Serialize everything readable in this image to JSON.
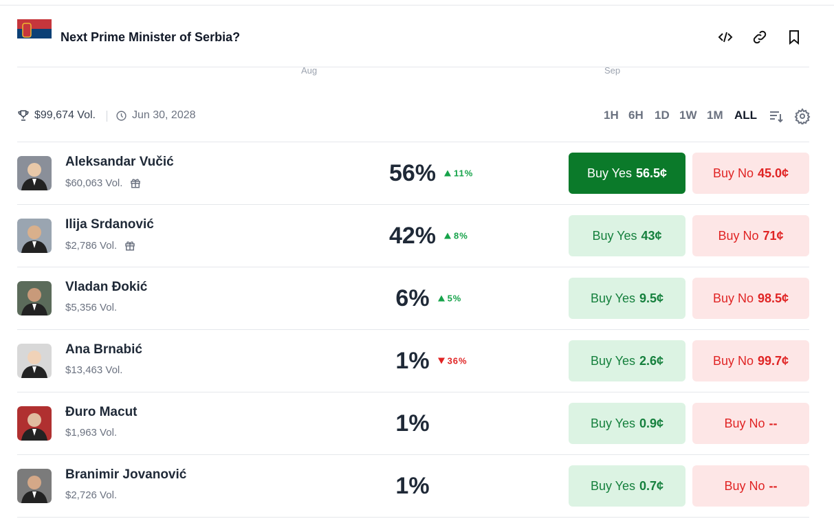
{
  "header": {
    "title": "Next Prime Minister of Serbia?"
  },
  "chart_axis": {
    "labels": [
      "Aug",
      "Sep"
    ]
  },
  "stats": {
    "volume": "$99,674 Vol.",
    "end_date": "Jun 30, 2028"
  },
  "time_ranges": {
    "options": [
      "1H",
      "6H",
      "1D",
      "1W",
      "1M",
      "ALL"
    ],
    "selected": 5
  },
  "outcomes": [
    {
      "name": "Aleksandar Vučić",
      "volume": "$60,063 Vol.",
      "gift": true,
      "chance": "56%",
      "change": "11%",
      "direction": "up",
      "yes_label": "Buy Yes",
      "yes_price": "56.5¢",
      "no_label": "Buy No",
      "no_price": "45.0¢",
      "yes_active": true
    },
    {
      "name": "Ilija Srdanović",
      "volume": "$2,786 Vol.",
      "gift": true,
      "chance": "42%",
      "change": "8%",
      "direction": "up",
      "yes_label": "Buy Yes",
      "yes_price": "43¢",
      "no_label": "Buy No",
      "no_price": "71¢"
    },
    {
      "name": "Vladan Đokić",
      "volume": "$5,356 Vol.",
      "chance": "6%",
      "change": "5%",
      "direction": "up",
      "yes_label": "Buy Yes",
      "yes_price": "9.5¢",
      "no_label": "Buy No",
      "no_price": "98.5¢"
    },
    {
      "name": "Ana Brnabić",
      "volume": "$13,463 Vol.",
      "chance": "1%",
      "change": "36%",
      "direction": "down",
      "yes_label": "Buy Yes",
      "yes_price": "2.6¢",
      "no_label": "Buy No",
      "no_price": "99.7¢"
    },
    {
      "name": "Đuro Macut",
      "volume": "$1,963 Vol.",
      "chance": "1%",
      "yes_label": "Buy Yes",
      "yes_price": "0.9¢",
      "no_label": "Buy No",
      "no_price": "--"
    },
    {
      "name": "Branimir Jovanović",
      "volume": "$2,726 Vol.",
      "chance": "1%",
      "yes_label": "Buy Yes",
      "yes_price": "0.7¢",
      "no_label": "Buy No",
      "no_price": "--"
    }
  ]
}
